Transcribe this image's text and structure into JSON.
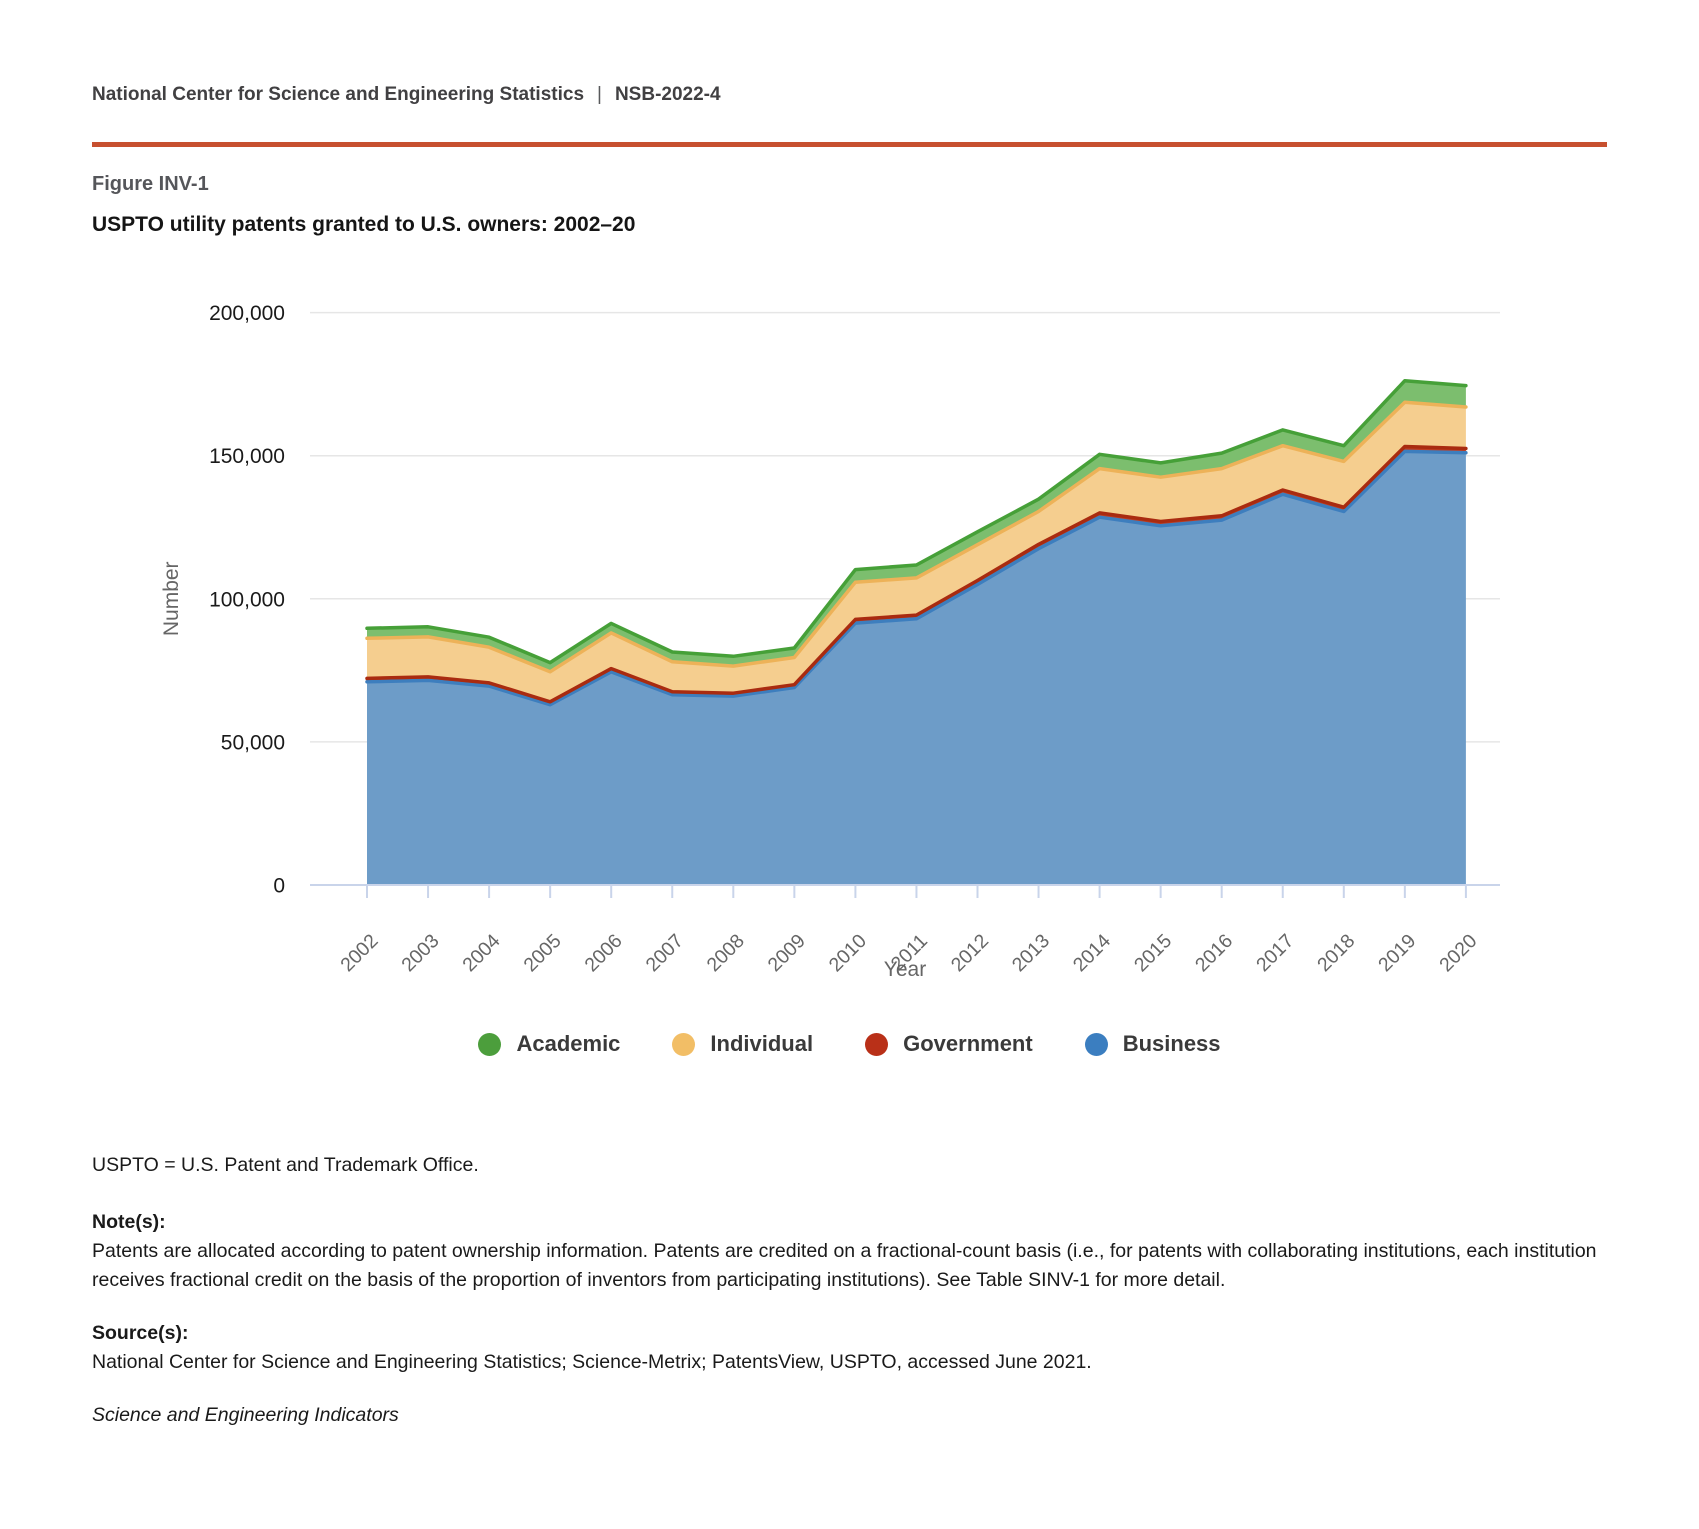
{
  "header": {
    "org": "National Center for Science and Engineering Statistics",
    "separator": "|",
    "report": "NSB-2022-4"
  },
  "figure": {
    "label": "Figure INV-1",
    "title": "USPTO utility patents granted to U.S. owners: 2002–20"
  },
  "colors": {
    "accent_rule": "#c7502f",
    "grid": "#e6e6e6",
    "axis": "#c9d4ea",
    "axis_title": "#666666",
    "x_tick_label": "#666666",
    "y_tick_label": "#1a1a1a"
  },
  "chart_data": {
    "type": "area",
    "stacked": true,
    "title": "USPTO utility patents granted to U.S. owners: 2002–20",
    "xlabel": "Year",
    "ylabel": "Number",
    "ylim": [
      0,
      200000
    ],
    "ytick_interval": 50000,
    "ytick_labels": [
      "0",
      "50,000",
      "100,000",
      "150,000",
      "200,000"
    ],
    "grid": true,
    "legend_position": "bottom",
    "x": [
      2002,
      2003,
      2004,
      2005,
      2006,
      2007,
      2008,
      2009,
      2010,
      2011,
      2012,
      2013,
      2014,
      2015,
      2016,
      2017,
      2018,
      2019,
      2020
    ],
    "stack_order_bottom_to_top": [
      "Business",
      "Government",
      "Individual",
      "Academic"
    ],
    "legend_order": [
      "Academic",
      "Individual",
      "Government",
      "Business"
    ],
    "series": [
      {
        "name": "Business",
        "fill": "#6d9cc8",
        "line": "#3d7ebe",
        "legend_color": "#3b7ec0",
        "values": [
          71000,
          71500,
          69500,
          63000,
          74500,
          66500,
          66000,
          69000,
          91500,
          93000,
          105000,
          117500,
          128500,
          125500,
          127500,
          136500,
          130500,
          151500,
          151000
        ]
      },
      {
        "name": "Government",
        "fill": "#be3e24",
        "line": "#a92b10",
        "legend_color": "#b93018",
        "values": [
          1200,
          1200,
          1100,
          1000,
          1100,
          1000,
          1000,
          1000,
          1300,
          1300,
          1400,
          1500,
          1500,
          1500,
          1500,
          1500,
          1500,
          1700,
          1500
        ]
      },
      {
        "name": "Individual",
        "fill": "#f5ce8f",
        "line": "#edb258",
        "legend_color": "#f2be66",
        "values": [
          14000,
          14000,
          12500,
          10500,
          12500,
          10500,
          9500,
          9500,
          13000,
          13000,
          12500,
          11500,
          15500,
          15500,
          16500,
          15500,
          16000,
          15500,
          14500
        ]
      },
      {
        "name": "Academic",
        "fill": "#7cbe6e",
        "line": "#46a038",
        "legend_color": "#4c9e3c",
        "values": [
          3500,
          3500,
          3500,
          3200,
          3300,
          3400,
          3400,
          3300,
          4400,
          4500,
          4500,
          4300,
          5000,
          5000,
          5400,
          5500,
          5500,
          7500,
          7500
        ]
      }
    ]
  },
  "footer": {
    "abbreviation": "USPTO = U.S. Patent and Trademark Office.",
    "notes_label": "Note(s):",
    "notes": "Patents are allocated according to patent ownership information. Patents are credited on a fractional-count basis (i.e., for patents with collaborating institutions, each institution receives fractional credit on the basis of the proportion of inventors from participating institutions). See Table SINV-1 for more detail.",
    "sources_label": "Source(s):",
    "sources": "National Center for Science and Engineering Statistics; Science-Metrix; PatentsView, USPTO, accessed June 2021.",
    "attribution": "Science and Engineering Indicators"
  }
}
